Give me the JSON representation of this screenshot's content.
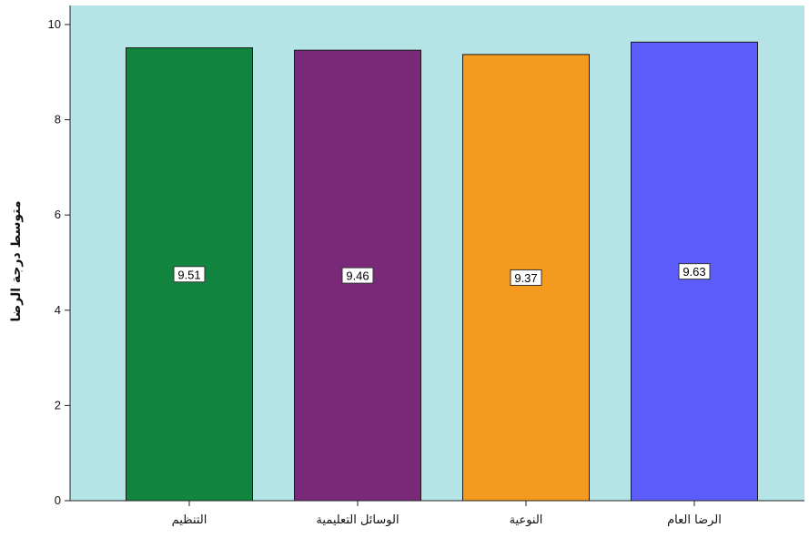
{
  "chart_data": {
    "type": "bar",
    "categories": [
      "التنظيم",
      "الوسائل التعليمية",
      "النوعية",
      "الرضا العام"
    ],
    "values": [
      9.51,
      9.46,
      9.37,
      9.63
    ],
    "data_labels": [
      "9.51",
      "9.46",
      "9.37",
      "9.63"
    ],
    "colors": [
      "#11853f",
      "#7a2878",
      "#f39a1f",
      "#5c5cfb"
    ],
    "plot_background": "#b4e4e6",
    "ylabel": "متوسط درجة الرضا",
    "xlabel": "",
    "ylim": [
      0,
      10.4
    ],
    "yticks": [
      0,
      2,
      4,
      6,
      8,
      10
    ],
    "grid": false,
    "legend": "none"
  }
}
